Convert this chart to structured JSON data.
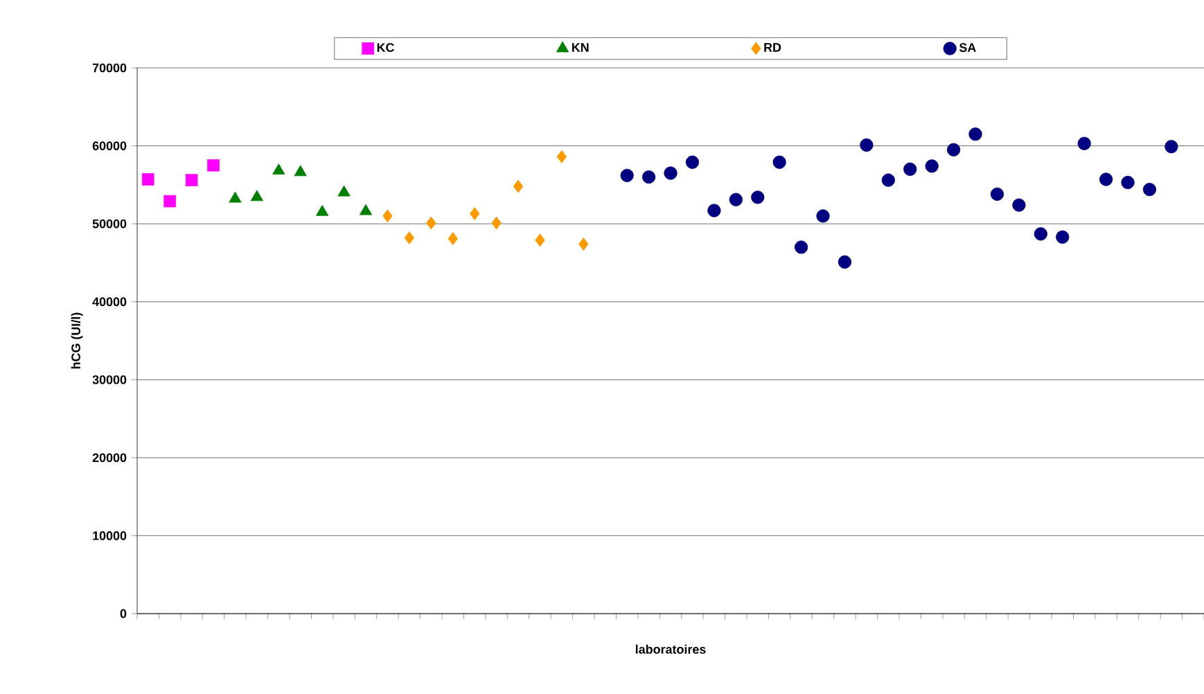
{
  "chart_data": {
    "type": "scatter",
    "xlabel": "laboratoires",
    "ylabel": "hCG (UI/l)",
    "categories": [
      null,
      null,
      null,
      null,
      null,
      null,
      null,
      null,
      null,
      null,
      null,
      null,
      null,
      null,
      null,
      null,
      null,
      null,
      null,
      null,
      null,
      null,
      null,
      null,
      null,
      null,
      null,
      null,
      null,
      null,
      null,
      null,
      null,
      null,
      null,
      null,
      null,
      null,
      null,
      null,
      null,
      null,
      null,
      null,
      null,
      null,
      null,
      null,
      null
    ],
    "series": [
      {
        "name": "KC",
        "color": "#ff00ff",
        "marker": "square",
        "values": [
          55700,
          52900,
          55600,
          57500,
          null,
          null,
          null,
          null,
          null,
          null,
          null,
          null,
          null,
          null,
          null,
          null,
          null,
          null,
          null,
          null,
          null,
          null,
          null,
          null,
          null,
          null,
          null,
          null,
          null,
          null,
          null,
          null,
          null,
          null,
          null,
          null,
          null,
          null,
          null,
          null,
          null,
          null,
          null,
          null,
          null,
          null,
          null,
          null,
          null
        ]
      },
      {
        "name": "KN",
        "color": "#008000",
        "marker": "triangle",
        "values": [
          null,
          null,
          null,
          null,
          53200,
          53400,
          56800,
          56600,
          51500,
          54000,
          51600,
          null,
          null,
          null,
          null,
          null,
          null,
          null,
          null,
          null,
          null,
          null,
          null,
          null,
          null,
          null,
          null,
          null,
          null,
          null,
          null,
          null,
          null,
          null,
          null,
          null,
          null,
          null,
          null,
          null,
          null,
          null,
          null,
          null,
          null,
          null,
          null,
          null,
          null
        ]
      },
      {
        "name": "RD",
        "color": "#ff9900",
        "marker": "diamond",
        "values": [
          null,
          null,
          null,
          null,
          null,
          null,
          null,
          null,
          null,
          null,
          null,
          51000,
          48200,
          50100,
          48100,
          51300,
          50100,
          54800,
          47900,
          58600,
          47400,
          null,
          null,
          null,
          null,
          null,
          null,
          null,
          null,
          null,
          null,
          null,
          null,
          null,
          null,
          null,
          null,
          null,
          null,
          null,
          null,
          null,
          null,
          null,
          null,
          null,
          null,
          null,
          null
        ]
      },
      {
        "name": "SA",
        "color": "#000080",
        "marker": "circle",
        "values": [
          null,
          null,
          null,
          null,
          null,
          null,
          null,
          null,
          null,
          null,
          null,
          null,
          null,
          null,
          null,
          null,
          null,
          null,
          null,
          null,
          null,
          null,
          56200,
          56000,
          56500,
          57900,
          51700,
          53100,
          53400,
          57900,
          47000,
          51000,
          45100,
          60100,
          55600,
          57000,
          57400,
          59500,
          61500,
          53800,
          52400,
          48700,
          48300,
          60300,
          55700,
          55300,
          54400,
          59900,
          null
        ]
      }
    ],
    "ylim": [
      0,
      70000
    ],
    "yticks": [
      0,
      10000,
      20000,
      30000,
      40000,
      50000,
      60000,
      70000
    ],
    "grid": "y",
    "legend": "top"
  }
}
